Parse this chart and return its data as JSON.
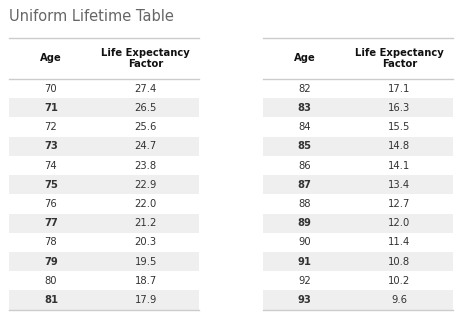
{
  "title": "Uniform Lifetime Table",
  "col_headers": [
    "Age",
    "Life Expectancy\nFactor"
  ],
  "left_data": [
    [
      "70",
      "27.4"
    ],
    [
      "71",
      "26.5"
    ],
    [
      "72",
      "25.6"
    ],
    [
      "73",
      "24.7"
    ],
    [
      "74",
      "23.8"
    ],
    [
      "75",
      "22.9"
    ],
    [
      "76",
      "22.0"
    ],
    [
      "77",
      "21.2"
    ],
    [
      "78",
      "20.3"
    ],
    [
      "79",
      "19.5"
    ],
    [
      "80",
      "18.7"
    ],
    [
      "81",
      "17.9"
    ]
  ],
  "right_data": [
    [
      "82",
      "17.1"
    ],
    [
      "83",
      "16.3"
    ],
    [
      "84",
      "15.5"
    ],
    [
      "85",
      "14.8"
    ],
    [
      "86",
      "14.1"
    ],
    [
      "87",
      "13.4"
    ],
    [
      "88",
      "12.7"
    ],
    [
      "89",
      "12.0"
    ],
    [
      "90",
      "11.4"
    ],
    [
      "91",
      "10.8"
    ],
    [
      "92",
      "10.2"
    ],
    [
      "93",
      "9.6"
    ]
  ],
  "bg_color": "#ffffff",
  "stripe_color": "#efefef",
  "title_color": "#666666",
  "text_color": "#333333",
  "header_text_color": "#111111",
  "line_color": "#cccccc",
  "title_fontsize": 10.5,
  "header_fontsize": 7.2,
  "cell_fontsize": 7.2
}
